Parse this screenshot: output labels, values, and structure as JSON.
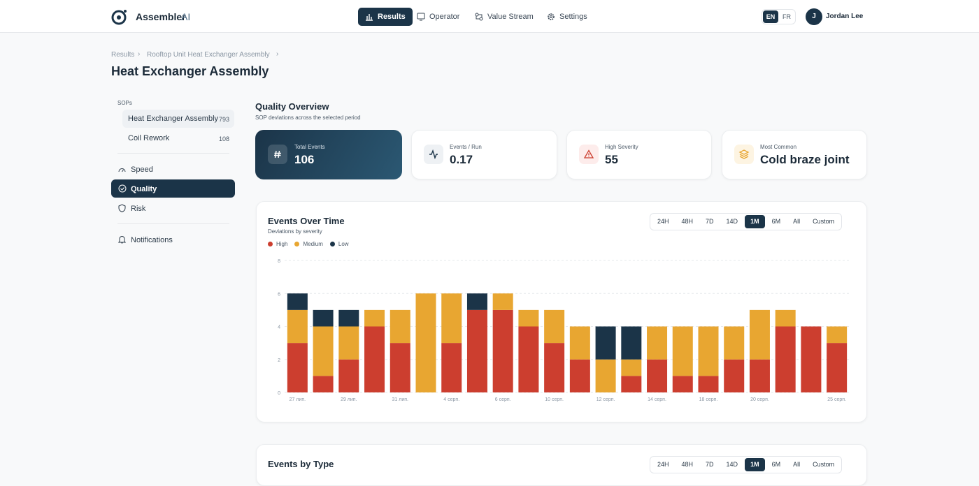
{
  "header": {
    "brand": "Assembler",
    "brand_suffix": "AI",
    "nav": [
      "Results",
      "Operator",
      "Value Stream",
      "Settings"
    ],
    "languages": [
      "EN",
      "FR"
    ],
    "user": {
      "initial": "J",
      "name": "Jordan Lee"
    }
  },
  "breadcrumb": [
    "Results",
    "Rooftop Unit Heat Exchanger Assembly"
  ],
  "page_title": "Heat Exchanger Assembly",
  "sidebar": {
    "sops_label": "SOPs",
    "sops": [
      {
        "name": "Heat Exchanger Assembly",
        "count": 793
      },
      {
        "name": "Coil Rework",
        "count": 108
      }
    ],
    "menu": [
      "Speed",
      "Quality",
      "Risk"
    ],
    "notifications": "Notifications"
  },
  "overview": {
    "title": "Quality Overview",
    "subtitle": "SOP deviations across the selected period",
    "cards": [
      {
        "label": "Total Events",
        "value": 106
      },
      {
        "label": "Events / Run",
        "value": 0.17
      },
      {
        "label": "High Severity",
        "value": 55
      },
      {
        "label": "Most Common",
        "value": "Cold braze joint"
      }
    ]
  },
  "chart_data": {
    "type": "stacked_bar",
    "title": "Events Over Time",
    "subtitle": "Deviations by severity",
    "ranges": [
      "24H",
      "48H",
      "7D",
      "14D",
      "1M",
      "6M",
      "All",
      "Custom"
    ],
    "categories": [
      "27 лип.",
      null,
      "29 лип.",
      null,
      "31 лип.",
      null,
      "4 серп.",
      null,
      "6 серп.",
      null,
      "10 серп.",
      null,
      "12 серп.",
      null,
      "14 серп.",
      null,
      "18 серп.",
      null,
      "20 серп.",
      null,
      null,
      "25 серп."
    ],
    "series": [
      {
        "name": "High",
        "color": "#cc3e2f",
        "values": [
          3,
          1,
          2,
          4,
          3,
          0,
          3,
          5,
          5,
          4,
          3,
          2,
          0,
          1,
          2,
          1,
          1,
          2,
          2,
          4,
          4,
          3
        ]
      },
      {
        "name": "Medium",
        "color": "#e8a631",
        "values": [
          2,
          3,
          2,
          1,
          2,
          6,
          3,
          0,
          1,
          1,
          2,
          2,
          2,
          1,
          2,
          3,
          3,
          2,
          3,
          1,
          0,
          1
        ]
      },
      {
        "name": "Low",
        "color": "#1b3448",
        "values": [
          1,
          1,
          1,
          0,
          0,
          0,
          0,
          1,
          0,
          0,
          0,
          0,
          2,
          2,
          0,
          0,
          0,
          0,
          0,
          0,
          0,
          0
        ]
      }
    ],
    "ylim": [
      0,
      8
    ],
    "yticks": [
      0,
      2,
      4,
      6,
      8
    ],
    "grid": true
  },
  "second_card": {
    "title": "Events by Type",
    "ranges": [
      "24H",
      "48H",
      "7D",
      "14D",
      "1M",
      "6M",
      "All",
      "Custom"
    ]
  }
}
